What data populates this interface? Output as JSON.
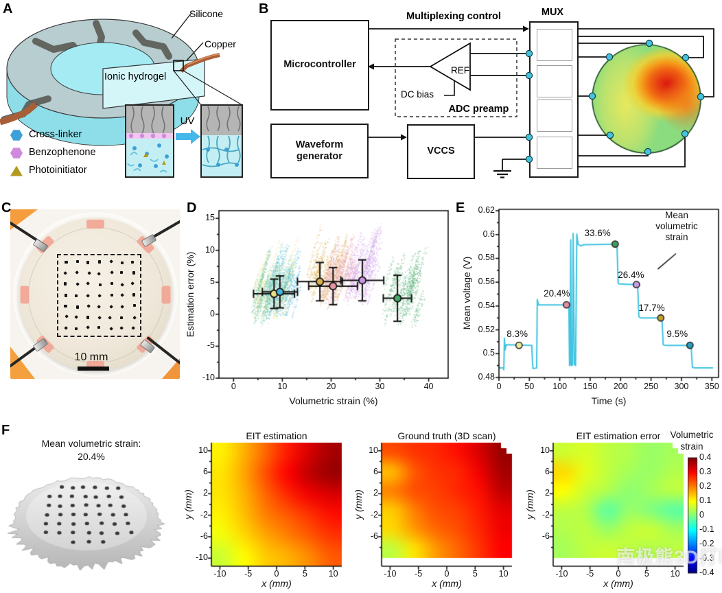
{
  "figure": {
    "bg": "#ffffff",
    "watermark": "南极熊3D打印"
  },
  "panelA": {
    "label": "A",
    "callouts": {
      "silicone": "Silicone",
      "copper": "Copper",
      "hydrogel": "Ionic hydrogel",
      "uv": "UV"
    },
    "legend": [
      {
        "shape": "hexagon",
        "color": "#3da0d8",
        "label": "Cross-linker"
      },
      {
        "shape": "hexagon",
        "color": "#cf8ade",
        "label": "Benzophenone"
      },
      {
        "shape": "triangle",
        "color": "#b29a21",
        "label": "Photoinitiator"
      }
    ],
    "colors": {
      "hydrogel": "#a4ebf3",
      "hydrogel_deep": "#8ddee9",
      "silicone": "#b7cdd0",
      "electrode": "#55534c",
      "copper": "#a85f38",
      "copper_light": "#d78a5a",
      "inset_gray": "#b5b5b5",
      "inset_cyan": "#c3eff4",
      "benzo_strip": "#f2c7ee",
      "chain": "#62c3d8"
    }
  },
  "panelB": {
    "label": "B",
    "blocks": {
      "microcontroller": "Microcontroller",
      "waveform": "Waveform generator",
      "vccs": "VCCS",
      "mux": "MUX"
    },
    "labels": {
      "mux_control": "Multiplexing control",
      "adc": "ADC preamp",
      "ref": "REF",
      "dc_bias": "DC bias"
    },
    "electrode_color": "#46c2dc",
    "map": {
      "base": "#8bdc7f",
      "band": "#e9e95e",
      "warm": "#f07a1c",
      "hot": "#dd1d10",
      "border": "#1c4a20"
    }
  },
  "panelC": {
    "label": "C",
    "scalebar": "10 mm",
    "grid_rows": 7,
    "grid_cols": 7
  },
  "panelD": {
    "label": "D"
  },
  "panelE": {
    "label": "E"
  },
  "panelF": {
    "label": "F",
    "caption1": "Mean volumetric strain:",
    "caption2": "20.4%"
  },
  "chart_data": [
    {
      "id": "D",
      "type": "scatter",
      "xlabel": "Volumetric strain (%)",
      "ylabel": "Estimation error (%)",
      "xlim": [
        -3,
        44
      ],
      "ylim": [
        -10,
        16.2
      ],
      "xticks": [
        0,
        10,
        20,
        30,
        40
      ],
      "yticks": [
        -10,
        -5,
        0,
        5,
        10,
        15
      ],
      "series": [
        {
          "name": "8.3%",
          "color": "#e9e388",
          "mean": [
            8.3,
            3.2
          ],
          "xerr": 4.2,
          "yerr": 2.3,
          "cloud": [
            7.2,
            1.8,
            3.4,
            3.4
          ]
        },
        {
          "name": "9.5%",
          "color": "#43b7dc",
          "mean": [
            9.5,
            3.5
          ],
          "xerr": 3.6,
          "yerr": 2.5,
          "cloud": [
            9.3,
            1.6,
            3.0,
            3.4
          ]
        },
        {
          "name": "17.7%",
          "color": "#ddaf4e",
          "mean": [
            17.7,
            5.1
          ],
          "xerr": 4.6,
          "yerr": 3.0,
          "cloud": [
            17.8,
            3.8,
            3.4,
            3.2
          ]
        },
        {
          "name": "20.4%",
          "color": "#e795a6",
          "mean": [
            20.4,
            4.4
          ],
          "xerr": 5.0,
          "yerr": 2.9,
          "cloud": [
            21.2,
            3.4,
            3.6,
            3.4
          ]
        },
        {
          "name": "26.4%",
          "color": "#c795e5",
          "mean": [
            26.4,
            5.3
          ],
          "xerr": 4.4,
          "yerr": 3.2,
          "cloud": [
            25.6,
            4.2,
            3.0,
            3.4
          ]
        },
        {
          "name": "33.6%",
          "color": "#46a968",
          "mean": [
            33.6,
            2.5
          ],
          "xerr": 2.9,
          "yerr": 3.6,
          "cloud": [
            33.8,
            1.4,
            3.4,
            4.2
          ]
        }
      ],
      "extra_clouds": [
        {
          "color": "#6cc49a",
          "cloud": [
            6.2,
            0.8,
            2.6,
            3.0
          ]
        }
      ]
    },
    {
      "id": "E",
      "type": "line",
      "xlabel": "Time (s)",
      "ylabel": "Mean voltage (V)",
      "xlim": [
        0,
        361
      ],
      "ylim": [
        0.48,
        0.6212
      ],
      "xticks": [
        0,
        50,
        100,
        150,
        200,
        250,
        300,
        350
      ],
      "yticks": [
        0.48,
        0.5,
        0.52,
        0.54,
        0.56,
        0.58,
        0.6,
        0.62
      ],
      "line_color": "#3fc3e0",
      "points": [
        [
          0,
          0.488
        ],
        [
          7,
          0.488
        ],
        [
          8,
          0.4865
        ],
        [
          9,
          0.513
        ],
        [
          10,
          0.503
        ],
        [
          12,
          0.5075
        ],
        [
          54,
          0.507
        ],
        [
          55,
          0.494
        ],
        [
          56,
          0.4875
        ],
        [
          62,
          0.488
        ],
        [
          63,
          0.5455
        ],
        [
          65,
          0.541
        ],
        [
          111,
          0.541
        ],
        [
          114,
          0.5405
        ],
        [
          115,
          0.538
        ],
        [
          116,
          0.49
        ],
        [
          117,
          0.492
        ],
        [
          118,
          0.5955
        ],
        [
          119,
          0.49
        ],
        [
          121,
          0.4905
        ],
        [
          122,
          0.601
        ],
        [
          124,
          0.491
        ],
        [
          126,
          0.49
        ],
        [
          128,
          0.6005
        ],
        [
          130,
          0.592
        ],
        [
          134,
          0.5905
        ],
        [
          140,
          0.5915
        ],
        [
          191,
          0.592
        ],
        [
          194,
          0.5915
        ],
        [
          196,
          0.559
        ],
        [
          198,
          0.5585
        ],
        [
          226,
          0.558
        ],
        [
          228,
          0.5575
        ],
        [
          230,
          0.531
        ],
        [
          233,
          0.53
        ],
        [
          266,
          0.53
        ],
        [
          268,
          0.529
        ],
        [
          270,
          0.5075
        ],
        [
          273,
          0.507
        ],
        [
          314,
          0.507
        ],
        [
          316,
          0.5055
        ],
        [
          318,
          0.4885
        ],
        [
          322,
          0.488
        ],
        [
          352,
          0.488
        ]
      ],
      "markers": [
        {
          "label": "8.3%",
          "x": 33,
          "y": 0.507,
          "color": "#efe9a0",
          "label_at": [
            30,
            0.5155
          ]
        },
        {
          "label": "20.4%",
          "x": 111,
          "y": 0.541,
          "color": "#e48fa4",
          "label_at": [
            95,
            0.5495
          ]
        },
        {
          "label": "33.6%",
          "x": 191,
          "y": 0.592,
          "color": "#3f9e58",
          "label_at": [
            162,
            0.6005
          ]
        },
        {
          "label": "26.4%",
          "x": 226,
          "y": 0.558,
          "color": "#c99ce4",
          "label_at": [
            217,
            0.5655
          ]
        },
        {
          "label": "17.7%",
          "x": 266,
          "y": 0.53,
          "color": "#c8a02c",
          "label_at": [
            251,
            0.5375
          ]
        },
        {
          "label": "9.5%",
          "x": 314,
          "y": 0.507,
          "color": "#2e9dbd",
          "label_at": [
            293,
            0.5155
          ]
        }
      ],
      "annotation": {
        "lines": [
          "Mean",
          "volumetric",
          "strain"
        ],
        "leader": [
          [
            261,
            0.571
          ],
          [
            291,
            0.584
          ]
        ]
      }
    },
    {
      "id": "F1",
      "type": "heatmap",
      "title": "EIT estimation",
      "xlabel": "x (mm)",
      "ylabel": "y (mm)",
      "xticks": [
        -10,
        -5,
        0,
        5,
        10
      ],
      "yticks": [
        10,
        6,
        2,
        -2,
        -6,
        -10
      ],
      "lim": [
        -11.5,
        11.5
      ],
      "vmin": -0.4,
      "vmax": 0.4,
      "notch": false,
      "values": [
        [
          0.11,
          0.16,
          0.22,
          0.28,
          0.33,
          0.37
        ],
        [
          0.12,
          0.17,
          0.24,
          0.3,
          0.35,
          0.38
        ],
        [
          0.12,
          0.16,
          0.22,
          0.27,
          0.31,
          0.33
        ],
        [
          0.11,
          0.15,
          0.2,
          0.23,
          0.26,
          0.29
        ],
        [
          0.09,
          0.13,
          0.17,
          0.2,
          0.23,
          0.26
        ],
        [
          0.06,
          0.1,
          0.14,
          0.16,
          0.19,
          0.23
        ]
      ]
    },
    {
      "id": "F2",
      "type": "heatmap",
      "title": "Ground truth (3D scan)",
      "xlabel": "x (mm)",
      "ylabel": "y (mm)",
      "xticks": [
        -10,
        -5,
        0,
        5,
        10
      ],
      "yticks": [
        10,
        6,
        2,
        -2,
        -6
      ],
      "lim": [
        -11.5,
        11.5
      ],
      "vmin": -0.4,
      "vmax": 0.4,
      "notch": true,
      "values": [
        [
          0.24,
          0.26,
          0.27,
          0.29,
          0.33,
          0.38
        ],
        [
          0.15,
          0.23,
          0.26,
          0.27,
          0.31,
          0.37
        ],
        [
          0.2,
          0.24,
          0.25,
          0.27,
          0.29,
          0.35
        ],
        [
          0.14,
          0.2,
          0.24,
          0.25,
          0.28,
          0.32
        ],
        [
          0.13,
          0.18,
          0.22,
          0.24,
          0.27,
          0.31
        ],
        [
          0.05,
          0.12,
          0.18,
          0.22,
          0.26,
          0.3
        ]
      ]
    },
    {
      "id": "F3",
      "type": "heatmap",
      "title": "EIT estimation error",
      "xlabel": "x (mm)",
      "ylabel": "y (mm)",
      "xticks": [
        -10,
        -5,
        0,
        5,
        10
      ],
      "yticks": [
        10,
        6,
        2,
        -2,
        -6
      ],
      "lim": [
        -11.5,
        11.5
      ],
      "vmin": -0.4,
      "vmax": 0.4,
      "notch": true,
      "values": [
        [
          0.06,
          0.07,
          0.05,
          0.04,
          0.02,
          0.03
        ],
        [
          0.13,
          0.08,
          0.05,
          0.03,
          0.02,
          0.04
        ],
        [
          0.1,
          0.06,
          0.04,
          0.01,
          0.03,
          0.05
        ],
        [
          0.05,
          0.04,
          -0.03,
          0.02,
          0,
          -0.03
        ],
        [
          0.04,
          0.05,
          0.02,
          0.05,
          0.06,
          0.03
        ],
        [
          0.03,
          0.05,
          0.06,
          0.05,
          0.04,
          0.05
        ]
      ]
    },
    {
      "id": "CB",
      "type": "colorbar",
      "title_line1": "Volumetric",
      "title_line2": "strain",
      "range": [
        -0.4,
        0.4
      ],
      "ticks": [
        0.4,
        0.3,
        0.2,
        0.1,
        0,
        -0.1,
        -0.2,
        -0.3,
        -0.4
      ]
    }
  ]
}
